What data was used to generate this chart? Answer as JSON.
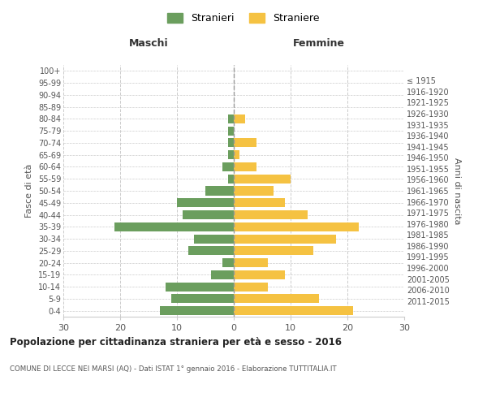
{
  "age_groups": [
    "0-4",
    "5-9",
    "10-14",
    "15-19",
    "20-24",
    "25-29",
    "30-34",
    "35-39",
    "40-44",
    "45-49",
    "50-54",
    "55-59",
    "60-64",
    "65-69",
    "70-74",
    "75-79",
    "80-84",
    "85-89",
    "90-94",
    "95-99",
    "100+"
  ],
  "birth_years": [
    "2011-2015",
    "2006-2010",
    "2001-2005",
    "1996-2000",
    "1991-1995",
    "1986-1990",
    "1981-1985",
    "1976-1980",
    "1971-1975",
    "1966-1970",
    "1961-1965",
    "1956-1960",
    "1951-1955",
    "1946-1950",
    "1941-1945",
    "1936-1940",
    "1931-1935",
    "1926-1930",
    "1921-1925",
    "1916-1920",
    "≤ 1915"
  ],
  "males": [
    13,
    11,
    12,
    4,
    2,
    8,
    7,
    21,
    9,
    10,
    5,
    1,
    2,
    1,
    1,
    1,
    1,
    0,
    0,
    0,
    0
  ],
  "females": [
    21,
    15,
    6,
    9,
    6,
    14,
    18,
    22,
    13,
    9,
    7,
    10,
    4,
    1,
    4,
    0,
    2,
    0,
    0,
    0,
    0
  ],
  "male_color": "#6b9e5e",
  "female_color": "#f5c242",
  "background_color": "#ffffff",
  "grid_color": "#cccccc",
  "title": "Popolazione per cittadinanza straniera per età e sesso - 2016",
  "subtitle": "COMUNE DI LECCE NEI MARSI (AQ) - Dati ISTAT 1° gennaio 2016 - Elaborazione TUTTITALIA.IT",
  "ylabel_left": "Fasce di età",
  "ylabel_right": "Anni di nascita",
  "maschi_label": "Maschi",
  "femmine_label": "Femmine",
  "legend_male": "Stranieri",
  "legend_female": "Straniere",
  "xlim": 30,
  "bar_height": 0.75
}
